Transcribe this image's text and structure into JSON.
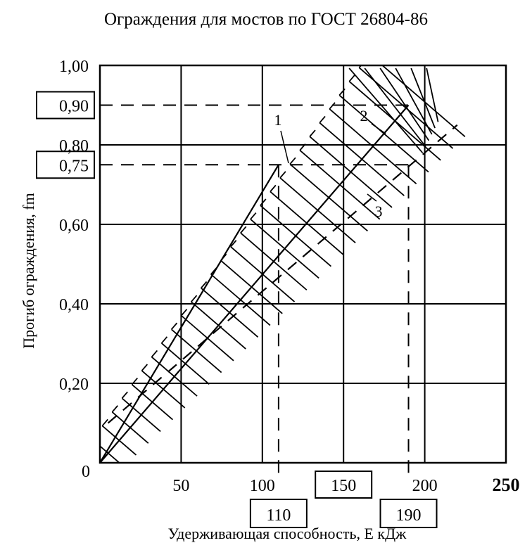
{
  "chart_data": {
    "type": "line",
    "title": "Ограждения для мостов по ГОСТ 26804-86",
    "xlabel": "Удерживающая способность, Е кДж",
    "ylabel": "Прогиб ограждения, fm",
    "xlim": [
      0,
      250
    ],
    "ylim": [
      0,
      1.0
    ],
    "x_ticks": [
      {
        "value": 0,
        "label": "0"
      },
      {
        "value": 50,
        "label": "50"
      },
      {
        "value": 100,
        "label": "100"
      },
      {
        "value": 150,
        "label": "150",
        "boxed": true
      },
      {
        "value": 200,
        "label": "200"
      },
      {
        "value": 250,
        "label": "250",
        "bold": true
      }
    ],
    "y_ticks": [
      {
        "value": 0.2,
        "label": "0,20"
      },
      {
        "value": 0.4,
        "label": "0,40"
      },
      {
        "value": 0.6,
        "label": "0,60"
      },
      {
        "value": 0.75,
        "label": "0,75",
        "boxed": true
      },
      {
        "value": 0.8,
        "label": "0,80"
      },
      {
        "value": 0.9,
        "label": "0,90",
        "boxed": true
      },
      {
        "value": 1.0,
        "label": "1,00"
      }
    ],
    "x_markers": [
      {
        "value": 110,
        "label": "110"
      },
      {
        "value": 190,
        "label": "190"
      }
    ],
    "grid": true,
    "series": [
      {
        "label": "1",
        "style": "hatched-upper-boundary",
        "points": [
          [
            0,
            0
          ],
          [
            110,
            0.75
          ]
        ]
      },
      {
        "label": "2",
        "style": "crosshatch-region",
        "points": [
          [
            150,
            1.0
          ],
          [
            190,
            0.9
          ]
        ]
      },
      {
        "label": "3",
        "style": "dashed-lower-boundary",
        "points": [
          [
            5,
            0.1
          ],
          [
            220,
            0.85
          ]
        ]
      },
      {
        "label": "",
        "style": "main-line",
        "points": [
          [
            0,
            0
          ],
          [
            190,
            0.9
          ]
        ]
      }
    ],
    "reference_lines": [
      {
        "orientation": "horizontal",
        "value": 0.9,
        "style": "dashed"
      },
      {
        "orientation": "horizontal",
        "value": 0.75,
        "style": "dashed"
      },
      {
        "orientation": "vertical",
        "value": 110,
        "style": "dashed"
      },
      {
        "orientation": "vertical",
        "value": 190,
        "style": "dashed"
      }
    ],
    "legend": "none"
  }
}
